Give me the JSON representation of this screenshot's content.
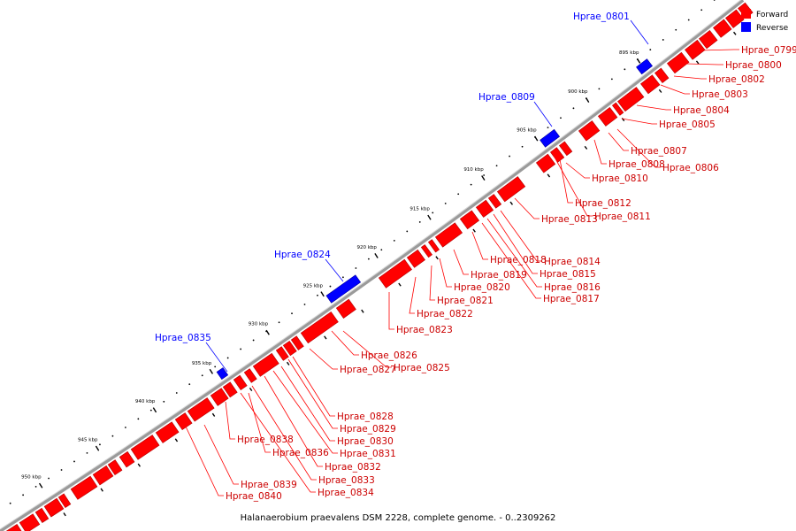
{
  "caption": "Halanaerobium praevalens DSM 2228, complete genome. - 0..2309262",
  "legend": [
    {
      "label": "Forward",
      "color": "#ff0000"
    },
    {
      "label": "Reverse",
      "color": "#0000ff"
    }
  ],
  "colors": {
    "forward": "#ff0000",
    "reverse": "#0000ff",
    "backbone": "#9a9a9a",
    "tick": "#000000"
  },
  "ticks": [
    "895 kbp",
    "900 kbp",
    "905 kbp",
    "910 kbp",
    "915 kbp",
    "920 kbp",
    "925 kbp",
    "930 kbp",
    "935 kbp",
    "940 kbp",
    "945 kbp",
    "950 kbp"
  ],
  "reverse_labels": [
    "Hprae_0801",
    "Hprae_0809",
    "Hprae_0824",
    "Hprae_0835"
  ],
  "forward_labels": [
    "Hprae_0799",
    "Hprae_0800",
    "Hprae_0802",
    "Hprae_0803",
    "Hprae_0804",
    "Hprae_0805",
    "Hprae_0807",
    "Hprae_0808",
    "Hprae_0806",
    "Hprae_0810",
    "Hprae_0812",
    "Hprae_0813",
    "Hprae_0811",
    "Hprae_0818",
    "Hprae_0814",
    "Hprae_0819",
    "Hprae_0815",
    "Hprae_0820",
    "Hprae_0816",
    "Hprae_0821",
    "Hprae_0817",
    "Hprae_0822",
    "Hprae_0823",
    "Hprae_0826",
    "Hprae_0827",
    "Hprae_0825",
    "Hprae_0828",
    "Hprae_0829",
    "Hprae_0830",
    "Hprae_0838",
    "Hprae_0831",
    "Hprae_0836",
    "Hprae_0832",
    "Hprae_0833",
    "Hprae_0839",
    "Hprae_0834",
    "Hprae_0840"
  ]
}
